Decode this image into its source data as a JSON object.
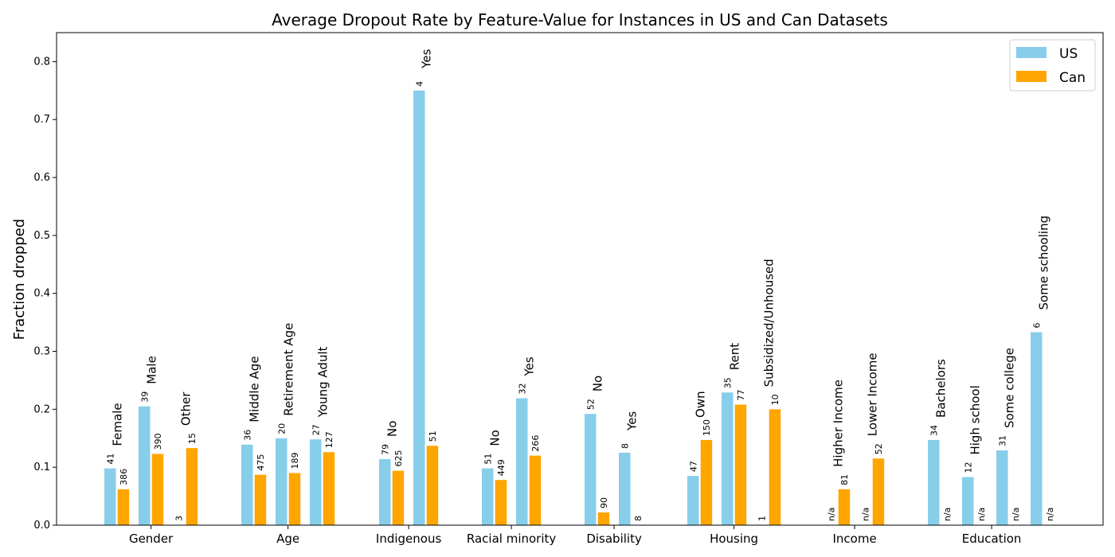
{
  "chart_data": {
    "type": "bar",
    "title": "Average Dropout Rate by Feature-Value for Instances in US and Can Datasets",
    "xlabel": "",
    "ylabel": "Fraction dropped",
    "ylim": [
      0,
      0.85
    ],
    "yticks": [
      "0.0",
      "0.1",
      "0.2",
      "0.3",
      "0.4",
      "0.5",
      "0.6",
      "0.7",
      "0.8"
    ],
    "legend_position": "top-right",
    "grid": false,
    "series": [
      {
        "name": "US",
        "color": "#87CEEB"
      },
      {
        "name": "Can",
        "color": "#FFA500"
      }
    ],
    "groups": [
      {
        "name": "Gender",
        "values": [
          {
            "label": "Female",
            "us": 0.098,
            "us_n": "41",
            "can": 0.062,
            "can_n": "386"
          },
          {
            "label": "Male",
            "us": 0.205,
            "us_n": "39",
            "can": 0.123,
            "can_n": "390"
          },
          {
            "label": "Other",
            "us": 0.0,
            "us_n": "3",
            "can": 0.133,
            "can_n": "15"
          }
        ]
      },
      {
        "name": "Age",
        "values": [
          {
            "label": "Middle Age",
            "us": 0.139,
            "us_n": "36",
            "can": 0.087,
            "can_n": "475"
          },
          {
            "label": "Retirement Age",
            "us": 0.15,
            "us_n": "20",
            "can": 0.09,
            "can_n": "189"
          },
          {
            "label": "Young Adult",
            "us": 0.148,
            "us_n": "27",
            "can": 0.126,
            "can_n": "127"
          }
        ]
      },
      {
        "name": "Indigenous",
        "values": [
          {
            "label": "No",
            "us": 0.114,
            "us_n": "79",
            "can": 0.094,
            "can_n": "625"
          },
          {
            "label": "Yes",
            "us": 0.75,
            "us_n": "4",
            "can": 0.137,
            "can_n": "51"
          }
        ]
      },
      {
        "name": "Racial minority",
        "values": [
          {
            "label": "No",
            "us": 0.098,
            "us_n": "51",
            "can": 0.078,
            "can_n": "449"
          },
          {
            "label": "Yes",
            "us": 0.219,
            "us_n": "32",
            "can": 0.12,
            "can_n": "266"
          }
        ]
      },
      {
        "name": "Disability",
        "values": [
          {
            "label": "No",
            "us": 0.192,
            "us_n": "52",
            "can": 0.022,
            "can_n": "90"
          },
          {
            "label": "Yes",
            "us": 0.125,
            "us_n": "8",
            "can": 0.0,
            "can_n": "8"
          }
        ]
      },
      {
        "name": "Housing",
        "values": [
          {
            "label": "Own",
            "us": 0.085,
            "us_n": "47",
            "can": 0.147,
            "can_n": "150"
          },
          {
            "label": "Rent",
            "us": 0.229,
            "us_n": "35",
            "can": 0.208,
            "can_n": "77"
          },
          {
            "label": "Subsidized/Unhoused",
            "us": 0.0,
            "us_n": "1",
            "can": 0.2,
            "can_n": "10"
          }
        ]
      },
      {
        "name": "Income",
        "values": [
          {
            "label": "Higher Income",
            "us": 0.0,
            "us_n": "n/a",
            "can": 0.062,
            "can_n": "81"
          },
          {
            "label": "Lower Income",
            "us": 0.0,
            "us_n": "n/a",
            "can": 0.115,
            "can_n": "52"
          }
        ]
      },
      {
        "name": "Education",
        "values": [
          {
            "label": "Bachelors",
            "us": 0.147,
            "us_n": "34",
            "can": 0.0,
            "can_n": "n/a"
          },
          {
            "label": "High school",
            "us": 0.083,
            "us_n": "12",
            "can": 0.0,
            "can_n": "n/a"
          },
          {
            "label": "Some college",
            "us": 0.129,
            "us_n": "31",
            "can": 0.0,
            "can_n": "n/a"
          },
          {
            "label": "Some schooling",
            "us": 0.333,
            "us_n": "6",
            "can": 0.0,
            "can_n": "n/a"
          }
        ]
      }
    ]
  }
}
